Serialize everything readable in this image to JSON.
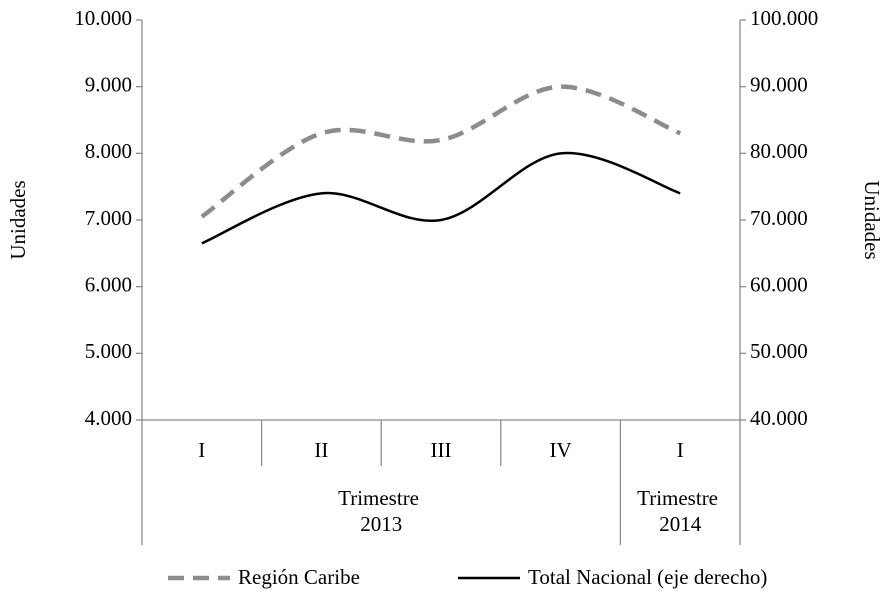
{
  "chart_data": {
    "type": "line",
    "categories": [
      "I",
      "II",
      "III",
      "IV",
      "I"
    ],
    "category_groups": [
      "Trimestre 2013",
      "Trimestre 2013",
      "Trimestre 2013",
      "Trimestre 2013",
      "Trimestre 2014"
    ],
    "ylabel": "Unidades",
    "y2label": "Unidades",
    "ylim": [
      4000,
      10000
    ],
    "yticks": [
      {
        "value": 4000,
        "label": "4.000"
      },
      {
        "value": 5000,
        "label": "5.000"
      },
      {
        "value": 6000,
        "label": "6.000"
      },
      {
        "value": 7000,
        "label": "7.000"
      },
      {
        "value": 8000,
        "label": "8.000"
      },
      {
        "value": 9000,
        "label": "9.000"
      },
      {
        "value": 10000,
        "label": "10.000"
      }
    ],
    "y2lim": [
      40000,
      100000
    ],
    "y2ticks": [
      {
        "value": 40000,
        "label": "40.000"
      },
      {
        "value": 50000,
        "label": "50.000"
      },
      {
        "value": 60000,
        "label": "60.000"
      },
      {
        "value": 70000,
        "label": "70.000"
      },
      {
        "value": 80000,
        "label": "80.000"
      },
      {
        "value": 90000,
        "label": "90.000"
      },
      {
        "value": 100000,
        "label": "100.000"
      }
    ],
    "legend": "bottom",
    "series": [
      {
        "name": "Región Caribe",
        "color": "#8c8c8c",
        "dashed": true,
        "values": [
          7050,
          8300,
          8200,
          9000,
          8300
        ]
      },
      {
        "name": "Total Nacional (eje derecho)",
        "color": "#000000",
        "dashed": false,
        "axis": "y2",
        "values": [
          66500,
          74000,
          70000,
          80000,
          74000
        ]
      }
    ]
  }
}
